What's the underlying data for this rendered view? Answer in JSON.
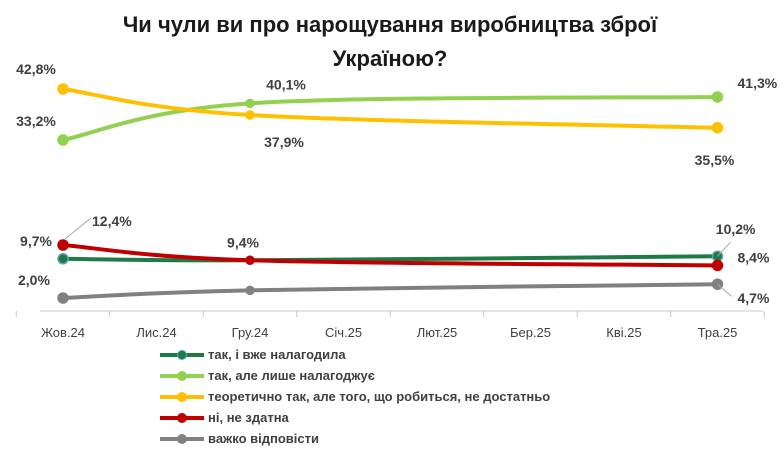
{
  "chart_data": {
    "type": "line",
    "title_lines": [
      "Чи чули ви про нарощування виробництва зброї",
      "Україною?"
    ],
    "categories": [
      "Жов.24",
      "Лис.24",
      "Гру.24",
      "Січ.25",
      "Лют.25",
      "Бер.25",
      "Кві.25",
      "Тра.25"
    ],
    "legend_position": "bottom",
    "grid": false,
    "series": [
      {
        "name": "так, і вже налагодила",
        "color": "#1e7b45",
        "points": [
          {
            "x": "Жов.24",
            "y": 9.7
          },
          {
            "x": "Гру.24",
            "y": 9.4
          },
          {
            "x": "Тра.25",
            "y": 10.2
          }
        ],
        "labels": [
          "9,7%",
          "",
          "10,2%"
        ]
      },
      {
        "name": "так, але лише налагоджує",
        "color": "#92d050",
        "points": [
          {
            "x": "Жов.24",
            "y": 33.2
          },
          {
            "x": "Гру.24",
            "y": 40.1
          },
          {
            "x": "Тра.25",
            "y": 41.3
          }
        ],
        "labels": [
          "33,2%",
          "40,1%",
          "41,3%"
        ]
      },
      {
        "name": "теоретично так, але того, що робиться, не достатньо",
        "color": "#ffc000",
        "points": [
          {
            "x": "Жов.24",
            "y": 42.8
          },
          {
            "x": "Гру.24",
            "y": 37.9
          },
          {
            "x": "Тра.25",
            "y": 35.5
          }
        ],
        "labels": [
          "42,8%",
          "37,9%",
          "35,5%"
        ]
      },
      {
        "name": "ні, не здатна",
        "color": "#c00000",
        "points": [
          {
            "x": "Жов.24",
            "y": 12.4
          },
          {
            "x": "Гру.24",
            "y": 9.4
          },
          {
            "x": "Тра.25",
            "y": 8.4
          }
        ],
        "labels": [
          "12,4%",
          "9,4%",
          "8,4%"
        ]
      },
      {
        "name": "важко відповісти",
        "color": "#808080",
        "points": [
          {
            "x": "Жов.24",
            "y": 2.0
          },
          {
            "x": "Гру.24",
            "y": 3.5
          },
          {
            "x": "Тра.25",
            "y": 4.7
          }
        ],
        "labels": [
          "2,0%",
          "",
          "4,7%"
        ]
      }
    ]
  }
}
